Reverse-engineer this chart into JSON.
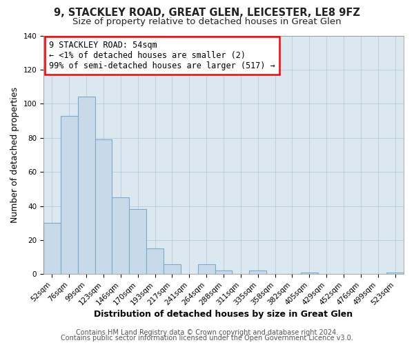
{
  "title": "9, STACKLEY ROAD, GREAT GLEN, LEICESTER, LE8 9FZ",
  "subtitle": "Size of property relative to detached houses in Great Glen",
  "xlabel": "Distribution of detached houses by size in Great Glen",
  "ylabel": "Number of detached properties",
  "bar_color": "#c8daea",
  "bar_edge_color": "#7aaac8",
  "bins": [
    "52sqm",
    "76sqm",
    "99sqm",
    "123sqm",
    "146sqm",
    "170sqm",
    "193sqm",
    "217sqm",
    "241sqm",
    "264sqm",
    "288sqm",
    "311sqm",
    "335sqm",
    "358sqm",
    "382sqm",
    "405sqm",
    "429sqm",
    "452sqm",
    "476sqm",
    "499sqm",
    "523sqm"
  ],
  "values": [
    30,
    93,
    104,
    79,
    45,
    38,
    15,
    6,
    0,
    6,
    2,
    0,
    2,
    0,
    0,
    1,
    0,
    0,
    0,
    0,
    1
  ],
  "ylim": [
    0,
    140
  ],
  "yticks": [
    0,
    20,
    40,
    60,
    80,
    100,
    120,
    140
  ],
  "annotation_line1": "9 STACKLEY ROAD: 54sqm",
  "annotation_line2": "← <1% of detached houses are smaller (2)",
  "annotation_line3": "99% of semi-detached houses are larger (517) →",
  "footer_line1": "Contains HM Land Registry data © Crown copyright and database right 2024.",
  "footer_line2": "Contains public sector information licensed under the Open Government Licence v3.0.",
  "background_color": "#ffffff",
  "plot_background_color": "#dce8f0",
  "grid_color": "#b8ccd8",
  "title_fontsize": 10.5,
  "subtitle_fontsize": 9.5,
  "axis_label_fontsize": 9,
  "tick_fontsize": 7.5,
  "footer_fontsize": 7,
  "annotation_fontsize": 8.5
}
